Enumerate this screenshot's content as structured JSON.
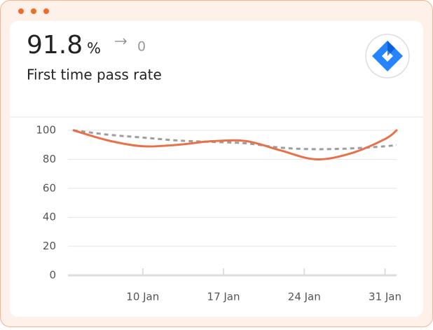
{
  "header": {
    "value": "91.8",
    "unit": "%",
    "change": "0",
    "title": "First time pass rate"
  },
  "chart_data": {
    "type": "line",
    "x": [
      4,
      7,
      10,
      13,
      16,
      19,
      22,
      25,
      28,
      31,
      32
    ],
    "series": [
      {
        "color": "#e8714a",
        "dashed": false,
        "values": [
          100,
          93,
          89,
          90,
          92.5,
          92.5,
          86,
          80,
          84,
          94,
          100
        ]
      },
      {
        "color": "#9e9e9e",
        "dashed": true,
        "values": [
          100,
          97,
          95,
          93,
          92,
          91,
          88,
          87,
          87.5,
          89,
          90
        ]
      }
    ],
    "xlim": [
      4,
      32
    ],
    "xticks": [
      {
        "value": 10,
        "label": "10 Jan"
      },
      {
        "value": 17,
        "label": "17 Jan"
      },
      {
        "value": 24,
        "label": "24 Jan"
      },
      {
        "value": 31,
        "label": "31 Jan"
      }
    ],
    "ylim": [
      0,
      100
    ],
    "yticks": [
      0,
      20,
      40,
      60,
      80,
      100
    ],
    "grid": true
  }
}
